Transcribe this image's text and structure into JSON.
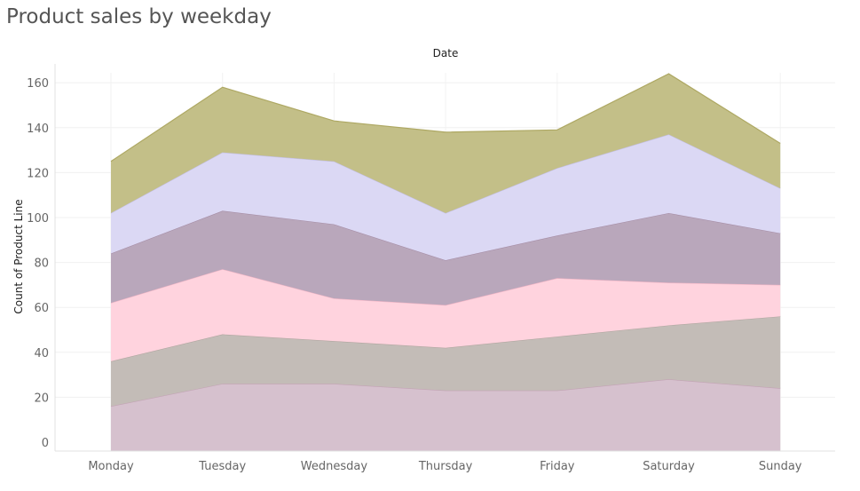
{
  "chart_data": {
    "type": "area",
    "stacked": true,
    "title": "Product sales by weekday",
    "column_header": "Date",
    "ylabel": "Count of Product Line",
    "ylim": [
      0,
      170
    ],
    "yticks": [
      0,
      20,
      40,
      60,
      80,
      100,
      120,
      140,
      160
    ],
    "categories": [
      "Monday",
      "Tuesday",
      "Wednesday",
      "Thursday",
      "Friday",
      "Saturday",
      "Sunday"
    ],
    "grid": true,
    "series": [
      {
        "color": "#d6c1ce",
        "values": [
          16,
          26,
          26,
          23,
          23,
          28,
          24
        ]
      },
      {
        "color": "#c3bcb7",
        "values": [
          20,
          22,
          19,
          19,
          24,
          24,
          32
        ]
      },
      {
        "color": "#ffd3de",
        "values": [
          26,
          29,
          19,
          19,
          26,
          19,
          14
        ]
      },
      {
        "color": "#b9a7bb",
        "values": [
          22,
          26,
          33,
          20,
          19,
          31,
          23
        ]
      },
      {
        "color": "#dbd8f4",
        "values": [
          18,
          26,
          28,
          21,
          30,
          35,
          20
        ]
      },
      {
        "color": "#c3bf88",
        "values": [
          23,
          29,
          18,
          36,
          17,
          27,
          20
        ]
      }
    ],
    "edge_colors": [
      "#c3a3b5",
      "#b0a6a0",
      "#f2b6c6",
      "#a68ea6",
      "#c3bfe6",
      "#aea863"
    ]
  }
}
